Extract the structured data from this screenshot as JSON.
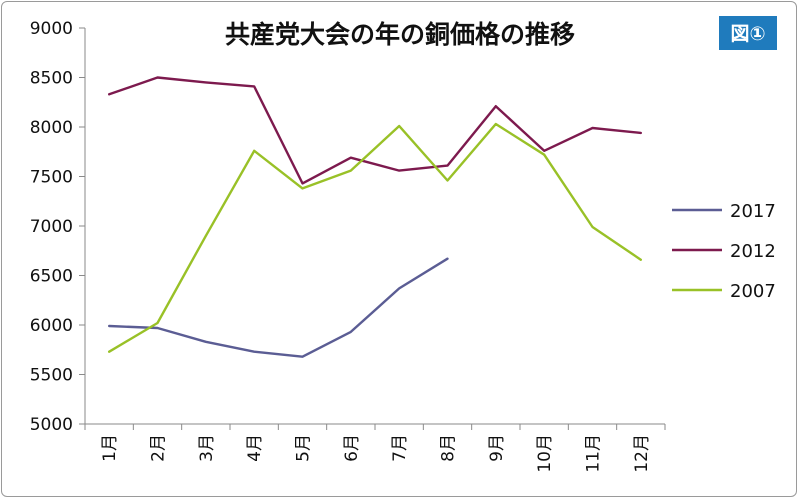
{
  "chart_data": {
    "type": "line",
    "title": "共産党大会の年の銅価格の推移",
    "badge": "図①",
    "categories": [
      "1月",
      "2月",
      "3月",
      "4月",
      "5月",
      "6月",
      "7月",
      "8月",
      "9月",
      "10月",
      "11月",
      "12月"
    ],
    "ylim": [
      5000,
      9000
    ],
    "yticks": [
      5000,
      5500,
      6000,
      6500,
      7000,
      7500,
      8000,
      8500,
      9000
    ],
    "legend_position": "right",
    "series": [
      {
        "name": "2017",
        "color": "#5b5d94",
        "values": [
          5990,
          5970,
          5830,
          5730,
          5680,
          5930,
          6370,
          6670,
          null,
          null,
          null,
          null
        ]
      },
      {
        "name": "2012",
        "color": "#7d1a4e",
        "values": [
          8330,
          8500,
          8450,
          8410,
          7430,
          7690,
          7560,
          7610,
          8210,
          7760,
          7990,
          7940
        ]
      },
      {
        "name": "2007",
        "color": "#99c127",
        "values": [
          5730,
          6020,
          6900,
          7760,
          7380,
          7560,
          8010,
          7460,
          8030,
          7720,
          6990,
          6660
        ]
      }
    ]
  }
}
